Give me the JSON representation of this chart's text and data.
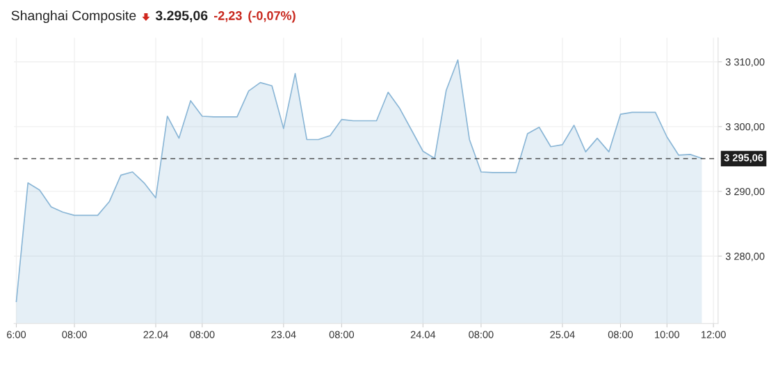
{
  "chart_data": {
    "type": "area",
    "title": "Shanghai Composite",
    "annotations": [
      "3.295,06",
      "-2,23",
      "(-0,07%)"
    ],
    "categories": [
      "6:00",
      null,
      null,
      null,
      null,
      "08:00",
      null,
      null,
      null,
      null,
      null,
      null,
      "22.04",
      null,
      null,
      null,
      "08:00",
      null,
      null,
      null,
      null,
      null,
      null,
      "23.04",
      null,
      null,
      null,
      null,
      "08:00",
      null,
      null,
      null,
      null,
      null,
      null,
      "24.04",
      null,
      null,
      null,
      null,
      "08:00",
      null,
      null,
      null,
      null,
      null,
      null,
      "25.04",
      null,
      null,
      null,
      null,
      "08:00",
      null,
      null,
      null,
      "10:00",
      null,
      null,
      null,
      "12:00"
    ],
    "series": [
      {
        "color": "#8ab6d6",
        "values": [
          3273.0,
          3291.3,
          3290.2,
          3287.6,
          3286.8,
          3286.3,
          3286.3,
          3286.3,
          3288.4,
          3292.5,
          3293.0,
          3291.3,
          3289.0,
          3301.6,
          3298.2,
          3304.0,
          3301.6,
          3301.5,
          3301.5,
          3301.5,
          3305.5,
          3306.8,
          3306.3,
          3299.7,
          3308.2,
          3298.0,
          3298.0,
          3298.6,
          3301.1,
          3300.9,
          3300.9,
          3300.9,
          3305.3,
          3302.8,
          3299.5,
          3296.2,
          3295.1,
          3305.6,
          3310.3,
          3298.0,
          3293.0,
          3292.9,
          3292.9,
          3292.9,
          3298.9,
          3299.9,
          3296.9,
          3297.2,
          3300.2,
          3296.1,
          3298.2,
          3296.1,
          3301.9,
          3302.2,
          3302.2,
          3302.2,
          3298.4,
          3295.6,
          3295.7,
          3295.1,
          null
        ]
      }
    ],
    "ylim": [
      3269.6,
      3313.7
    ],
    "yticks": [
      {
        "value": 3280,
        "label": "3 280,00"
      },
      {
        "value": 3290,
        "label": "3 290,00"
      },
      {
        "value": 3300,
        "label": "3 300,00"
      },
      {
        "value": 3310,
        "label": "3 310,00"
      }
    ],
    "ref_lines": [
      {
        "axis": "y",
        "value": 3295.06,
        "label": "3 295,06",
        "color": "#333333",
        "line_style": "dashed"
      }
    ],
    "grid": true,
    "legend": false
  }
}
